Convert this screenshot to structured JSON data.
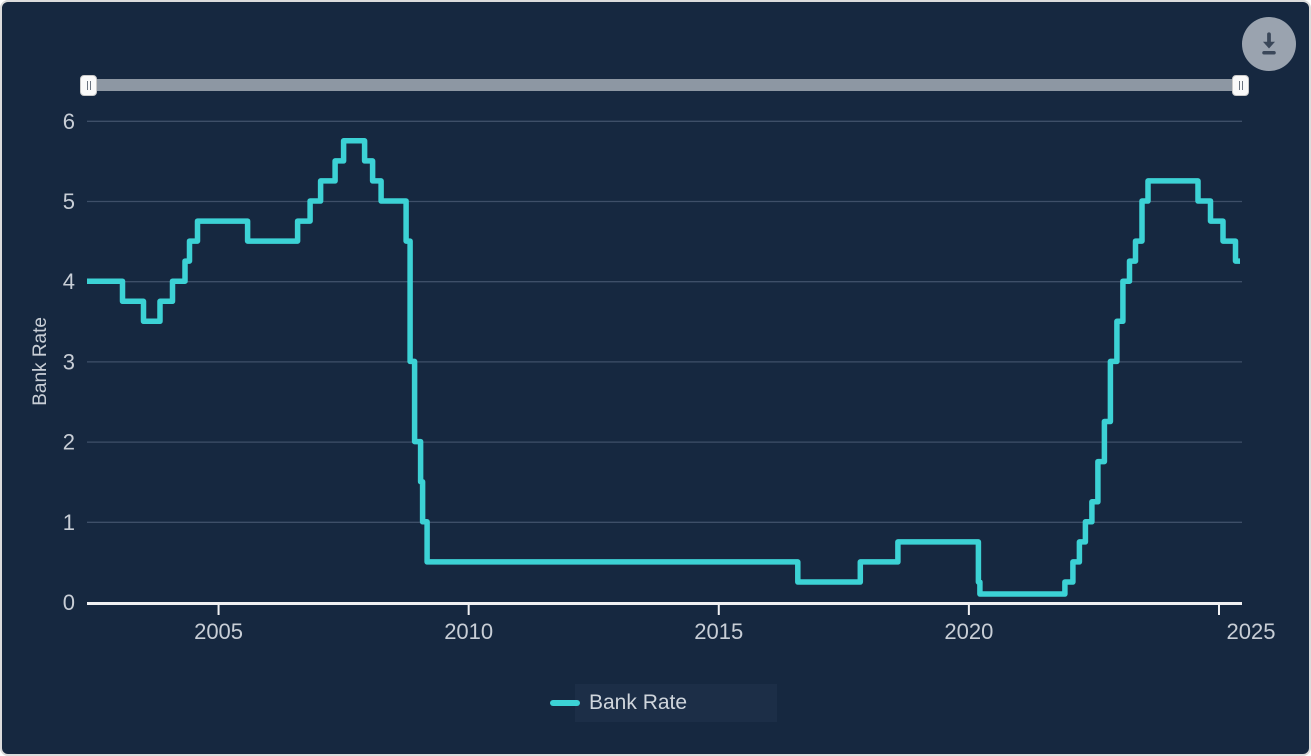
{
  "page": {
    "background": "#162840",
    "accent": "#3cd2d5",
    "grid_color": "#3e4f68",
    "axis_color": "#f0f0f2",
    "text_color": "#c8ced6",
    "border_color": "#dcdcdc"
  },
  "toolbar": {
    "download_icon": "download-icon"
  },
  "range_slider": {
    "min_percent": 0,
    "max_percent": 100
  },
  "legend": {
    "items": [
      {
        "label": "Bank Rate",
        "color": "#3cd2d5"
      }
    ]
  },
  "chart_data": {
    "type": "line",
    "subtype": "step-after",
    "title": "",
    "xlabel": "",
    "ylabel": "Bank Rate",
    "xticks": [
      2005,
      2010,
      2015,
      2020,
      2025
    ],
    "yticks": [
      0,
      1,
      2,
      3,
      4,
      5,
      6
    ],
    "xlim": [
      2002.37,
      2025.42
    ],
    "ylim": [
      0,
      6
    ],
    "grid": "horizontal",
    "legend_position": "bottom",
    "series": [
      {
        "name": "Bank Rate",
        "color": "#3cd2d5",
        "points": [
          [
            2002.37,
            4.0
          ],
          [
            2003.08,
            3.75
          ],
          [
            2003.5,
            3.5
          ],
          [
            2003.83,
            3.75
          ],
          [
            2004.08,
            4.0
          ],
          [
            2004.33,
            4.25
          ],
          [
            2004.42,
            4.5
          ],
          [
            2004.58,
            4.75
          ],
          [
            2005.58,
            4.5
          ],
          [
            2006.58,
            4.75
          ],
          [
            2006.83,
            5.0
          ],
          [
            2007.04,
            5.25
          ],
          [
            2007.33,
            5.5
          ],
          [
            2007.5,
            5.75
          ],
          [
            2007.92,
            5.5
          ],
          [
            2008.08,
            5.25
          ],
          [
            2008.25,
            5.0
          ],
          [
            2008.75,
            4.5
          ],
          [
            2008.83,
            3.0
          ],
          [
            2008.92,
            2.0
          ],
          [
            2009.04,
            1.5
          ],
          [
            2009.08,
            1.0
          ],
          [
            2009.17,
            0.5
          ],
          [
            2016.58,
            0.25
          ],
          [
            2017.83,
            0.5
          ],
          [
            2018.58,
            0.75
          ],
          [
            2020.19,
            0.25
          ],
          [
            2020.22,
            0.1
          ],
          [
            2021.92,
            0.25
          ],
          [
            2022.08,
            0.5
          ],
          [
            2022.21,
            0.75
          ],
          [
            2022.33,
            1.0
          ],
          [
            2022.46,
            1.25
          ],
          [
            2022.58,
            1.75
          ],
          [
            2022.71,
            2.25
          ],
          [
            2022.83,
            3.0
          ],
          [
            2022.96,
            3.5
          ],
          [
            2023.08,
            4.0
          ],
          [
            2023.21,
            4.25
          ],
          [
            2023.33,
            4.5
          ],
          [
            2023.46,
            5.0
          ],
          [
            2023.58,
            5.25
          ],
          [
            2024.58,
            5.0
          ],
          [
            2024.83,
            4.75
          ],
          [
            2025.08,
            4.5
          ],
          [
            2025.33,
            4.25
          ]
        ]
      }
    ]
  }
}
